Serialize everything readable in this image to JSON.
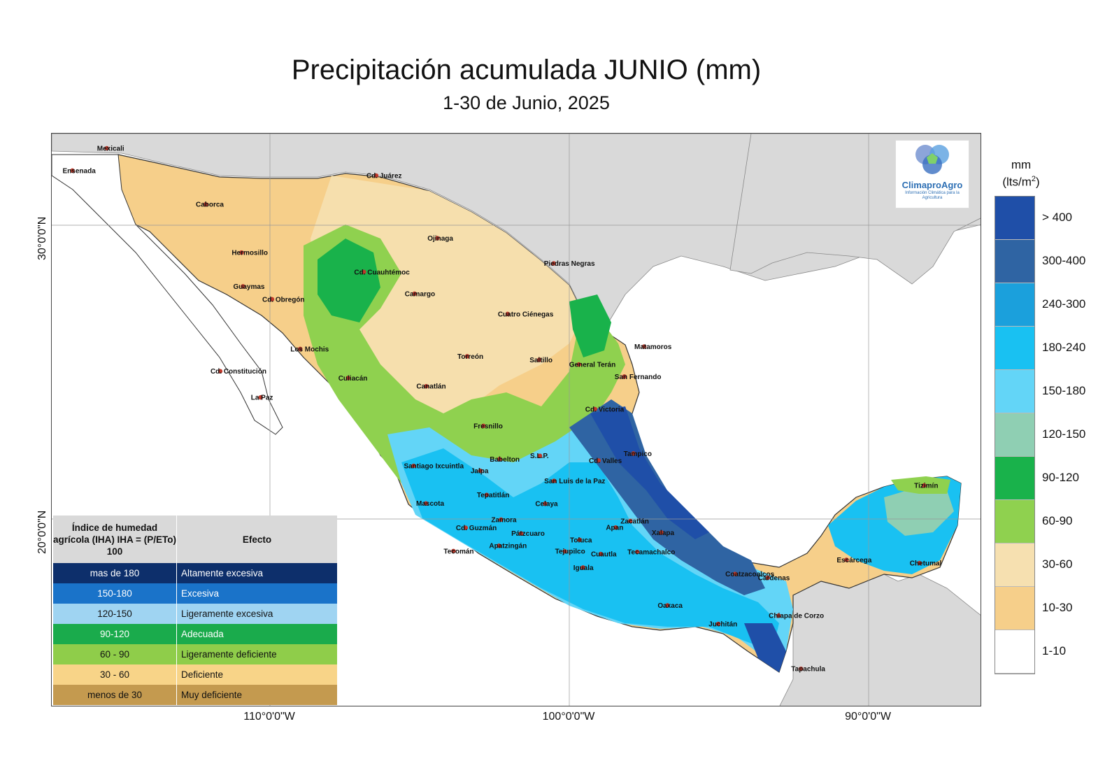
{
  "title": "Precipitación acumulada JUNIO (mm)",
  "subtitle": "1-30 de Junio, 2025",
  "axes": {
    "lat_labels": [
      "30°0'0\"N",
      "20°0'0\"N"
    ],
    "lon_labels": [
      "110°0'0\"W",
      "100°0'0\"W",
      "90°0'0\"W"
    ]
  },
  "logo": {
    "name": "ClimaproAgro",
    "tagline": "Información Climática para la Agricultura"
  },
  "legend": {
    "unit_line1": "mm",
    "unit_line2": "(lts/m",
    "unit_sup": "2",
    "unit_close": ")",
    "classes": [
      {
        "label": "> 400",
        "color": "#1f4fa8"
      },
      {
        "label": "300-400",
        "color": "#2f64a3"
      },
      {
        "label": "240-300",
        "color": "#1ba0dc"
      },
      {
        "label": "180-240",
        "color": "#19c1f2"
      },
      {
        "label": "150-180",
        "color": "#63d5f7"
      },
      {
        "label": "120-150",
        "color": "#8fcfb3"
      },
      {
        "label": "90-120",
        "color": "#19b24b"
      },
      {
        "label": "60-90",
        "color": "#8fd14f"
      },
      {
        "label": "30-60",
        "color": "#f6e0b0"
      },
      {
        "label": "10-30",
        "color": "#f6cf8a"
      },
      {
        "label": "1-10",
        "color": "#ffffff"
      }
    ]
  },
  "iha_table": {
    "header_col1": "Índice de humedad agrícola (IHA) IHA = (P/ETo) 100",
    "header_col2": "Efecto",
    "rows": [
      {
        "range": "mas de 180",
        "effect": "Altamente excesiva",
        "color": "#0d2f6b",
        "text_color": "#ffffff"
      },
      {
        "range": "150-180",
        "effect": "Excesiva",
        "color": "#1a73c9",
        "text_color": "#ffffff"
      },
      {
        "range": "120-150",
        "effect": "Ligeramente excesiva",
        "color": "#9fd4f2",
        "text_color": "#111111"
      },
      {
        "range": "90-120",
        "effect": "Adecuada",
        "color": "#1aab4c",
        "text_color": "#ffffff"
      },
      {
        "range": "60 - 90",
        "effect": "Ligeramente deficiente",
        "color": "#8fcd4a",
        "text_color": "#111111"
      },
      {
        "range": "30 - 60",
        "effect": "Deficiente",
        "color": "#f8d488",
        "text_color": "#111111"
      },
      {
        "range": "menos de 30",
        "effect": "Muy deficiente",
        "color": "#c49a4f",
        "text_color": "#111111"
      }
    ]
  },
  "cities": [
    {
      "name": "Mexicali",
      "lon": -115.45,
      "lat": 32.62
    },
    {
      "name": "Ensenada",
      "lon": -116.6,
      "lat": 31.86
    },
    {
      "name": "Cd. Juárez",
      "lon": -106.45,
      "lat": 31.69
    },
    {
      "name": "Caborca",
      "lon": -112.15,
      "lat": 30.71
    },
    {
      "name": "Ojinaga",
      "lon": -104.41,
      "lat": 29.56
    },
    {
      "name": "Hermosillo",
      "lon": -110.95,
      "lat": 29.07
    },
    {
      "name": "Cd. Cuauhtémoc",
      "lon": -106.86,
      "lat": 28.41
    },
    {
      "name": "Piedras Negras",
      "lon": -100.52,
      "lat": 28.7
    },
    {
      "name": "Guaymas",
      "lon": -110.9,
      "lat": 27.92
    },
    {
      "name": "Camargo",
      "lon": -105.17,
      "lat": 27.67
    },
    {
      "name": "Cd. Obregón",
      "lon": -109.93,
      "lat": 27.48
    },
    {
      "name": "Cuatro Ciénegas",
      "lon": -102.06,
      "lat": 26.98
    },
    {
      "name": "Matamoros",
      "lon": -97.5,
      "lat": 25.87
    },
    {
      "name": "Los Mochis",
      "lon": -108.99,
      "lat": 25.79
    },
    {
      "name": "Torreón",
      "lon": -103.41,
      "lat": 25.54
    },
    {
      "name": "Saltillo",
      "lon": -101.0,
      "lat": 25.42
    },
    {
      "name": "General Terán",
      "lon": -99.68,
      "lat": 25.26
    },
    {
      "name": "San Fernando",
      "lon": -98.16,
      "lat": 24.85
    },
    {
      "name": "Cd. Constitución",
      "lon": -111.66,
      "lat": 25.03
    },
    {
      "name": "Culiacán",
      "lon": -107.39,
      "lat": 24.8
    },
    {
      "name": "Canatlán",
      "lon": -104.78,
      "lat": 24.52
    },
    {
      "name": "La Paz",
      "lon": -110.31,
      "lat": 24.14
    },
    {
      "name": "Cd. Victoria",
      "lon": -99.14,
      "lat": 23.74
    },
    {
      "name": "Fresnillo",
      "lon": -102.87,
      "lat": 23.17
    },
    {
      "name": "Tampico",
      "lon": -97.86,
      "lat": 22.23
    },
    {
      "name": "Babelton",
      "lon": -102.33,
      "lat": 22.04
    },
    {
      "name": "S.L.P.",
      "lon": -100.98,
      "lat": 22.15
    },
    {
      "name": "Cd. Valles",
      "lon": -99.02,
      "lat": 21.99
    },
    {
      "name": "Santiago Ixcuintla",
      "lon": -105.2,
      "lat": 21.81
    },
    {
      "name": "Jalpa",
      "lon": -102.97,
      "lat": 21.64
    },
    {
      "name": "San Luis de la Paz",
      "lon": -100.51,
      "lat": 21.3
    },
    {
      "name": "Tizimín",
      "lon": -88.15,
      "lat": 21.14
    },
    {
      "name": "Tepatitlán",
      "lon": -102.76,
      "lat": 20.82
    },
    {
      "name": "Mascota",
      "lon": -104.79,
      "lat": 20.53
    },
    {
      "name": "Celaya",
      "lon": -100.81,
      "lat": 20.52
    },
    {
      "name": "Zacatlán",
      "lon": -97.96,
      "lat": 19.93
    },
    {
      "name": "Zamora",
      "lon": -102.28,
      "lat": 19.98
    },
    {
      "name": "Apan",
      "lon": -98.45,
      "lat": 19.71
    },
    {
      "name": "Xalapa",
      "lon": -96.92,
      "lat": 19.54
    },
    {
      "name": "Cd. Guzmán",
      "lon": -103.46,
      "lat": 19.7
    },
    {
      "name": "Pátzcuaro",
      "lon": -101.61,
      "lat": 19.51
    },
    {
      "name": "Toluca",
      "lon": -99.65,
      "lat": 19.29
    },
    {
      "name": "Tecomán",
      "lon": -103.87,
      "lat": 18.91
    },
    {
      "name": "Apatzingán",
      "lon": -102.35,
      "lat": 19.09
    },
    {
      "name": "Tejupilco",
      "lon": -100.15,
      "lat": 18.9
    },
    {
      "name": "Cuautla",
      "lon": -98.95,
      "lat": 18.81
    },
    {
      "name": "Tecamachalco",
      "lon": -97.73,
      "lat": 18.88
    },
    {
      "name": "Escárcega",
      "lon": -90.74,
      "lat": 18.61
    },
    {
      "name": "Chetumal",
      "lon": -88.3,
      "lat": 18.5
    },
    {
      "name": "Iguala",
      "lon": -99.54,
      "lat": 18.35
    },
    {
      "name": "Coatzacoalcos",
      "lon": -94.46,
      "lat": 18.13
    },
    {
      "name": "Cárdenas",
      "lon": -93.37,
      "lat": 18.0
    },
    {
      "name": "Oaxaca",
      "lon": -96.72,
      "lat": 17.06
    },
    {
      "name": "Chiapa de Corzo",
      "lon": -93.01,
      "lat": 16.71
    },
    {
      "name": "Juchitán",
      "lon": -95.02,
      "lat": 16.43
    },
    {
      "name": "Tapachula",
      "lon": -92.26,
      "lat": 14.9
    }
  ]
}
